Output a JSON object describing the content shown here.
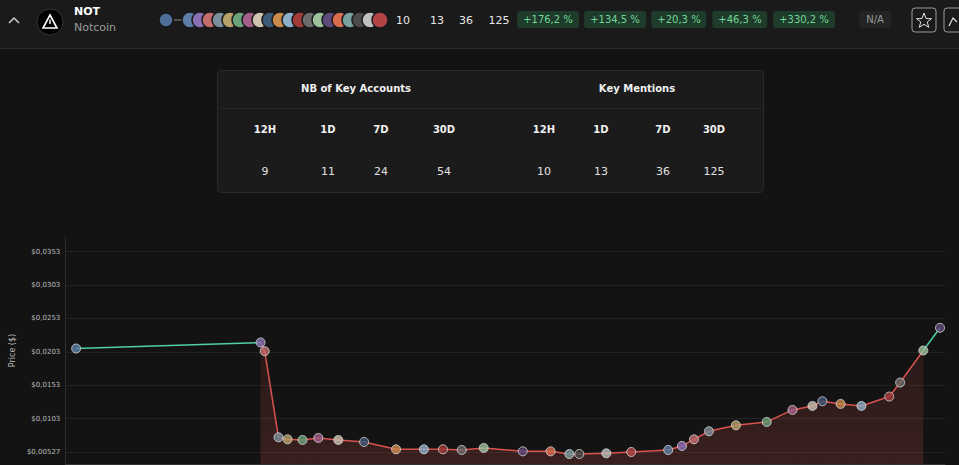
{
  "header": {
    "symbol": "NOT",
    "name": "Notcoin",
    "mentions": [
      10,
      13,
      36,
      125
    ],
    "changes": [
      "+176,2 %",
      "+134,5 %",
      "+20,3 %",
      "+46,3 %",
      "+330,2 %"
    ],
    "status": "N/A"
  },
  "table": {
    "groups": [
      {
        "title": "NB of Key Accounts",
        "columns": [
          "12H",
          "1D",
          "7D",
          "30D"
        ],
        "values": [
          9,
          11,
          24,
          54
        ]
      },
      {
        "title": "Key Mentions",
        "columns": [
          "12H",
          "1D",
          "7D",
          "30D"
        ],
        "values": [
          10,
          13,
          36,
          125
        ]
      }
    ]
  },
  "chart_data": {
    "type": "line",
    "y_label": "Price ($)",
    "x": [
      0.37,
      6.66,
      6.8,
      7.27,
      7.58,
      8.09,
      8.63,
      9.31,
      10.19,
      11.28,
      12.23,
      12.88,
      13.52,
      14.27,
      15.6,
      16.55,
      17.19,
      17.53,
      18.45,
      19.3,
      20.56,
      21.03,
      21.44,
      21.95,
      22.87,
      23.92,
      24.8,
      25.48,
      25.82,
      26.44,
      27.15,
      28.1,
      28.47,
      29.26,
      29.83
    ],
    "values": [
      0.0208,
      0.0217,
      0.0204,
      0.0075,
      0.0072,
      0.0071,
      0.0074,
      0.0071,
      0.0068,
      0.0057,
      0.0057,
      0.0057,
      0.0056,
      0.0059,
      0.0054,
      0.0054,
      0.005,
      0.005,
      0.0051,
      0.0053,
      0.0056,
      0.0062,
      0.0072,
      0.0084,
      0.0093,
      0.0098,
      0.0116,
      0.0122,
      0.0129,
      0.0125,
      0.0122,
      0.0136,
      0.0157,
      0.0205,
      0.0239
    ],
    "colors": [
      "#4fd1a5",
      "#4fd1a5",
      "#d9534f",
      "#d9534f",
      "#d9534f",
      "#d9534f",
      "#d9534f",
      "#d9534f",
      "#d9534f",
      "#d9534f",
      "#d9534f",
      "#d9534f",
      "#d9534f",
      "#d9534f",
      "#d9534f",
      "#d9534f",
      "#d9534f",
      "#d9534f",
      "#d9534f",
      "#d9534f",
      "#d9534f",
      "#d9534f",
      "#d9534f",
      "#d9534f",
      "#d9534f",
      "#d9534f",
      "#d9534f",
      "#d9534f",
      "#d9534f",
      "#d9534f",
      "#d9534f",
      "#d9534f",
      "#d9534f",
      "#d9534f",
      "#4fd1a5"
    ],
    "color": "#d9534f",
    "marker": "circle",
    "xlim": [
      0,
      30
    ],
    "ylim": [
      0.0035,
      0.0375
    ],
    "yticks": [
      {
        "value": 0.00527,
        "label": "$0,00527"
      },
      {
        "value": 0.0103,
        "label": "$0,0103"
      },
      {
        "value": 0.0153,
        "label": "$0,0153"
      },
      {
        "value": 0.0203,
        "label": "$0,0203"
      },
      {
        "value": 0.0253,
        "label": "$0,0253"
      },
      {
        "value": 0.0303,
        "label": "$0,0303"
      },
      {
        "value": 0.0353,
        "label": "$0,0353"
      }
    ],
    "grid": true,
    "tick_labels": "y"
  }
}
